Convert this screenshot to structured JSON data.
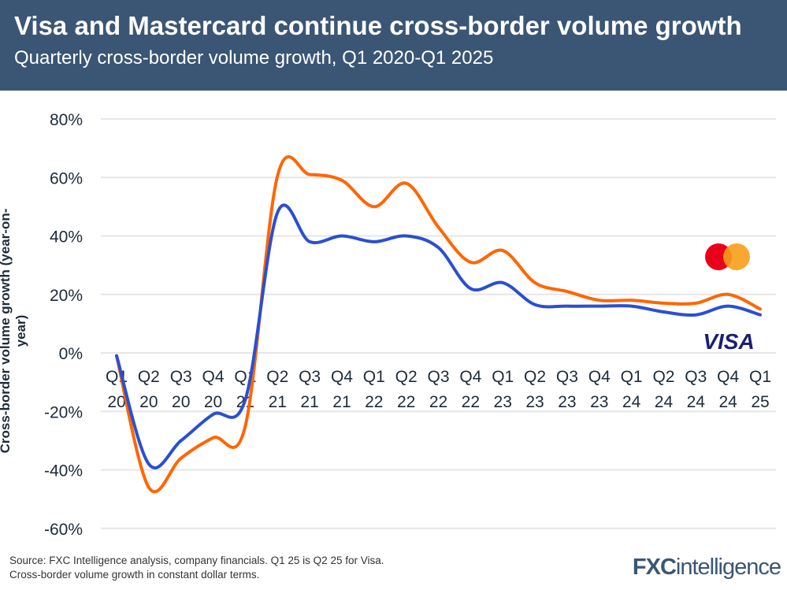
{
  "header": {
    "title": "Visa and Mastercard continue cross-border volume growth",
    "subtitle": "Quarterly cross-border volume growth, Q1 2020-Q1 2025"
  },
  "footer": {
    "source_line1": "Source: FXC Intelligence analysis, company financials. Q1 25 is Q2 25 for Visa.",
    "source_line2": "Cross-border volume growth in constant dollar terms.",
    "logo": "FXCintelligence"
  },
  "chart_data": {
    "type": "line",
    "title": "Visa and Mastercard continue cross-border volume growth",
    "xlabel": "",
    "ylabel": "Cross-border volume growth (year-on-year)",
    "ylim": [
      -60,
      80
    ],
    "yticks": [
      "80%",
      "60%",
      "40%",
      "20%",
      "0%",
      "-20%",
      "-40%",
      "-60%"
    ],
    "ytick_values": [
      80,
      60,
      40,
      20,
      0,
      -20,
      -40,
      -60
    ],
    "grid": true,
    "legend": "logos at right end of lines",
    "categories": [
      [
        "Q1",
        "20"
      ],
      [
        "Q2",
        "20"
      ],
      [
        "Q3",
        "20"
      ],
      [
        "Q4",
        "20"
      ],
      [
        "Q1",
        "21"
      ],
      [
        "Q2",
        "21"
      ],
      [
        "Q3",
        "21"
      ],
      [
        "Q4",
        "21"
      ],
      [
        "Q1",
        "22"
      ],
      [
        "Q2",
        "22"
      ],
      [
        "Q3",
        "22"
      ],
      [
        "Q4",
        "22"
      ],
      [
        "Q1",
        "23"
      ],
      [
        "Q2",
        "23"
      ],
      [
        "Q3",
        "23"
      ],
      [
        "Q4",
        "23"
      ],
      [
        "Q1",
        "24"
      ],
      [
        "Q2",
        "24"
      ],
      [
        "Q3",
        "24"
      ],
      [
        "Q4",
        "24"
      ],
      [
        "Q1",
        "25"
      ]
    ],
    "series": [
      {
        "name": "Mastercard",
        "color": "#ff6600",
        "values": [
          -1,
          -46,
          -36,
          -29,
          -25,
          60.5,
          61,
          59,
          50,
          58,
          43,
          31,
          35,
          24,
          21,
          18,
          18,
          17,
          17,
          20,
          15
        ]
      },
      {
        "name": "VISA",
        "color": "#2a4fd1",
        "values": [
          -1,
          -38,
          -30,
          -21,
          -16,
          48,
          38,
          40,
          38,
          40,
          36,
          22,
          24,
          16.5,
          16,
          16,
          16,
          14,
          13,
          16,
          13
        ]
      }
    ]
  }
}
